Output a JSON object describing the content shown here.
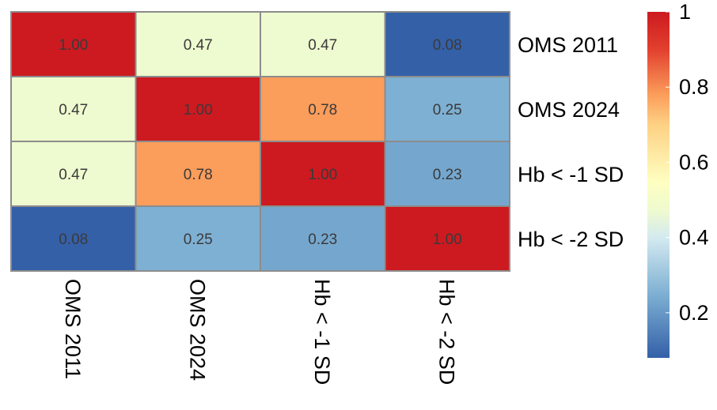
{
  "chart_data": {
    "type": "heatmap",
    "rows": [
      "OMS 2011",
      "OMS 2024",
      "Hb < -1 SD",
      "Hb < -2 SD"
    ],
    "columns": [
      "OMS 2011",
      "OMS 2024",
      "Hb < -1 SD",
      "Hb < -2 SD"
    ],
    "values": [
      [
        1.0,
        0.47,
        0.47,
        0.08
      ],
      [
        0.47,
        1.0,
        0.78,
        0.25
      ],
      [
        0.47,
        0.78,
        1.0,
        0.23
      ],
      [
        0.08,
        0.25,
        0.23,
        1.0
      ]
    ],
    "value_format_decimals": 2,
    "color_scale": {
      "min": 0.08,
      "max": 1.0,
      "stops": [
        {
          "value": 0.08,
          "color": "#3460a8"
        },
        {
          "value": 0.25,
          "color": "#7eb0d3"
        },
        {
          "value": 0.4,
          "color": "#d4eaf0"
        },
        {
          "value": 0.47,
          "color": "#eefacf"
        },
        {
          "value": 0.55,
          "color": "#fefec0"
        },
        {
          "value": 0.7,
          "color": "#fdd184"
        },
        {
          "value": 0.78,
          "color": "#fb9d5b"
        },
        {
          "value": 0.9,
          "color": "#e2402e"
        },
        {
          "value": 1.0,
          "color": "#cc1a20"
        }
      ]
    },
    "legend": {
      "position": "right",
      "ticks": [
        "1",
        "0.8",
        "0.6",
        "0.4",
        "0.2"
      ],
      "tick_values": [
        1.0,
        0.8,
        0.6,
        0.4,
        0.2
      ]
    },
    "cell_border_color": "#8c8c8c"
  }
}
